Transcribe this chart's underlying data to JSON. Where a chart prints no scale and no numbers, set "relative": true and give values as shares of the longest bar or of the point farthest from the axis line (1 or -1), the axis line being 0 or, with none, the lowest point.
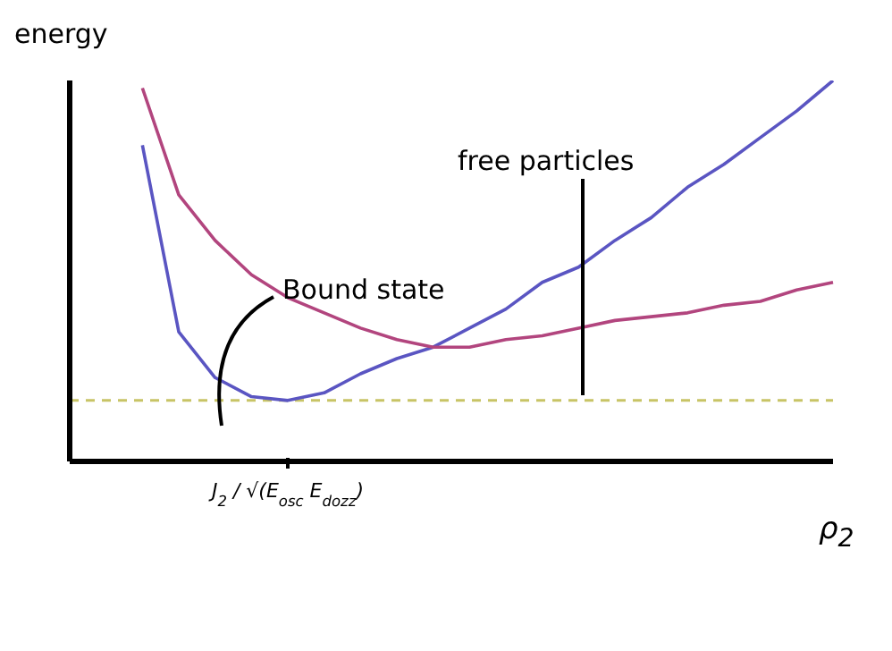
{
  "chart_data": {
    "type": "line",
    "relative": true,
    "xlabel": "ρ$_{2}$",
    "ylabel": "energy",
    "categories": [
      null,
      null,
      null,
      null,
      null,
      null,
      null,
      null,
      null,
      null,
      null,
      null,
      null,
      null,
      null,
      null,
      null,
      null,
      null,
      null,
      null,
      null
    ],
    "series": [
      {
        "color": "#5a55c2",
        "values": [
          null,
          null,
          0.83,
          0.34,
          0.22,
          0.17,
          0.16,
          0.18,
          0.23,
          0.27,
          0.3,
          0.35,
          0.4,
          0.47,
          0.51,
          0.58,
          0.64,
          0.72,
          0.78,
          0.85,
          0.92,
          1.0
        ]
      },
      {
        "color": "#b2457e",
        "values": [
          null,
          null,
          0.98,
          0.7,
          0.58,
          0.49,
          0.43,
          0.39,
          0.35,
          0.32,
          0.3,
          0.3,
          0.32,
          0.33,
          0.35,
          0.37,
          0.38,
          0.39,
          0.41,
          0.42,
          0.45,
          0.47
        ]
      }
    ],
    "ref_lines": [
      {
        "axis": "y",
        "value": 0.16,
        "color": "#c8c466",
        "line_style": "dashed"
      }
    ],
    "annotations": [
      "Bound state",
      "free particles",
      "J$_{2}$ / √(E$_{osc}$ E$_{dozz}$)"
    ],
    "marker": "none",
    "line_style": "solid"
  }
}
